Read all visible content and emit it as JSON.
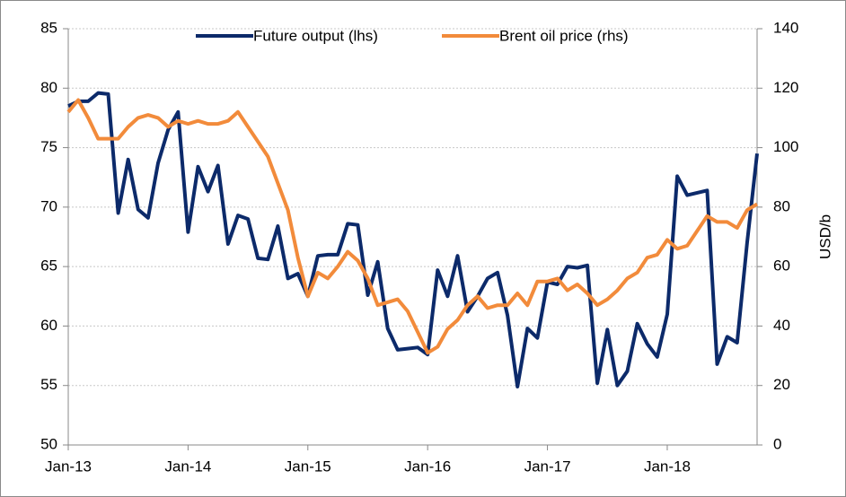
{
  "chart_data": {
    "type": "line",
    "categories": [
      "Jan-13",
      null,
      null,
      null,
      null,
      null,
      null,
      null,
      null,
      null,
      null,
      null,
      "Jan-14",
      null,
      null,
      null,
      null,
      null,
      null,
      null,
      null,
      null,
      null,
      null,
      "Jan-15",
      null,
      null,
      null,
      null,
      null,
      null,
      null,
      null,
      null,
      null,
      null,
      "Jan-16",
      null,
      null,
      null,
      null,
      null,
      null,
      null,
      null,
      null,
      null,
      null,
      "Jan-17",
      null,
      null,
      null,
      null,
      null,
      null,
      null,
      null,
      null,
      null,
      null,
      "Jan-18",
      null,
      null,
      null,
      null,
      null,
      null,
      null,
      null,
      null
    ],
    "series": [
      {
        "name": "Future output (lhs)",
        "color": "#0c2a6a",
        "values": [
          78.5,
          78.9,
          78.9,
          79.6,
          79.5,
          69.5,
          74.0,
          69.8,
          69.1,
          73.7,
          76.5,
          78.0,
          67.9,
          73.4,
          71.3,
          73.5,
          66.9,
          69.3,
          69.0,
          65.7,
          65.6,
          68.4,
          64.0,
          64.4,
          62.5,
          65.9,
          66.0,
          66.0,
          68.6,
          68.5,
          62.6,
          65.4,
          59.8,
          58.0,
          58.1,
          58.2,
          57.6,
          64.7,
          62.5,
          65.9,
          61.2,
          62.5,
          64.0,
          64.5,
          60.9,
          54.9,
          59.8,
          59.0,
          63.7,
          63.5,
          65.0,
          64.9,
          65.1,
          55.2,
          59.7,
          55.0,
          56.2,
          60.2,
          58.5,
          57.4,
          61.0,
          72.6,
          71.0,
          71.2,
          71.4,
          56.8,
          59.1,
          58.6,
          67.0,
          74.5
        ]
      },
      {
        "name": "Brent oil price (rhs)",
        "color": "#f28b3b",
        "axis": "y2",
        "values": [
          112,
          116,
          110,
          103,
          103,
          103,
          107,
          110,
          111,
          110,
          107,
          109,
          108,
          109,
          108,
          108,
          109,
          112,
          107,
          102,
          97,
          88,
          79,
          63,
          50,
          58,
          56,
          60,
          65,
          62,
          56,
          47,
          48,
          49,
          45,
          38,
          31,
          33,
          39,
          42,
          47,
          50,
          46,
          47,
          47,
          51,
          47,
          55,
          55,
          56,
          52,
          54,
          51,
          47,
          49,
          52,
          56,
          58,
          63,
          64,
          69,
          66,
          67,
          72,
          77,
          75,
          75,
          73,
          79,
          81
        ]
      }
    ],
    "ylim": [
      50,
      85
    ],
    "yticks": [
      50,
      55,
      60,
      65,
      70,
      75,
      80,
      85
    ],
    "y2lim": [
      0,
      140
    ],
    "y2ticks": [
      0,
      20,
      40,
      60,
      80,
      100,
      120,
      140
    ],
    "y2label": "USD/b",
    "grid": true
  }
}
